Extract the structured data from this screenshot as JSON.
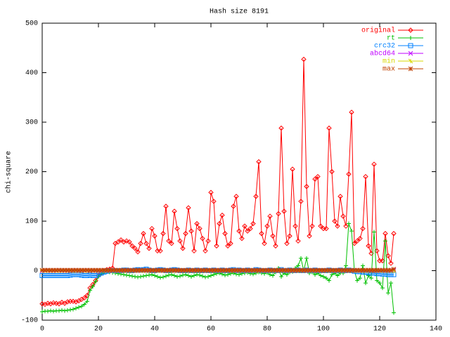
{
  "chart_data": {
    "type": "line",
    "title": "Hash size 8191",
    "ylabel": "chi-square",
    "xlim": [
      0,
      140
    ],
    "xticks": [
      0,
      20,
      40,
      60,
      80,
      100,
      120,
      140
    ],
    "ylim": [
      -100,
      500
    ],
    "yticks": [
      -100,
      0,
      100,
      200,
      300,
      400,
      500
    ],
    "legend": "top-right",
    "x": [
      0,
      1,
      2,
      3,
      4,
      5,
      6,
      7,
      8,
      9,
      10,
      11,
      12,
      13,
      14,
      15,
      16,
      17,
      18,
      19,
      20,
      21,
      22,
      23,
      24,
      25,
      26,
      27,
      28,
      29,
      30,
      31,
      32,
      33,
      34,
      35,
      36,
      37,
      38,
      39,
      40,
      41,
      42,
      43,
      44,
      45,
      46,
      47,
      48,
      49,
      50,
      51,
      52,
      53,
      54,
      55,
      56,
      57,
      58,
      59,
      60,
      61,
      62,
      63,
      64,
      65,
      66,
      67,
      68,
      69,
      70,
      71,
      72,
      73,
      74,
      75,
      76,
      77,
      78,
      79,
      80,
      81,
      82,
      83,
      84,
      85,
      86,
      87,
      88,
      89,
      90,
      91,
      92,
      93,
      94,
      95,
      96,
      97,
      98,
      99,
      100,
      101,
      102,
      103,
      104,
      105,
      106,
      107,
      108,
      109,
      110,
      111,
      112,
      113,
      114,
      115,
      116,
      117,
      118,
      119,
      120,
      121,
      122,
      123,
      124,
      125
    ],
    "series": [
      {
        "name": "original",
        "color": "#ff0000",
        "marker": "diamond",
        "values": [
          -67,
          -68,
          -66,
          -67,
          -65,
          -66,
          -67,
          -64,
          -66,
          -63,
          -62,
          -62,
          -63,
          -61,
          -58,
          -55,
          -50,
          -35,
          -28,
          -20,
          -10,
          -5,
          0,
          2,
          3,
          5,
          55,
          58,
          62,
          58,
          60,
          58,
          50,
          45,
          38,
          55,
          75,
          55,
          45,
          85,
          70,
          40,
          40,
          75,
          130,
          60,
          55,
          120,
          85,
          60,
          45,
          75,
          127,
          80,
          40,
          95,
          85,
          65,
          40,
          60,
          158,
          140,
          50,
          95,
          112,
          75,
          50,
          55,
          130,
          150,
          80,
          65,
          90,
          80,
          85,
          95,
          150,
          220,
          75,
          55,
          90,
          110,
          70,
          50,
          115,
          288,
          120,
          55,
          70,
          205,
          90,
          60,
          140,
          427,
          170,
          70,
          90,
          185,
          190,
          90,
          85,
          85,
          288,
          200,
          100,
          90,
          150,
          110,
          90,
          195,
          320,
          55,
          60,
          65,
          85,
          190,
          50,
          35,
          215,
          40,
          20,
          20,
          75,
          30,
          15,
          75
        ]
      },
      {
        "name": "rt",
        "color": "#00c000",
        "marker": "plus",
        "values": [
          -83,
          -82,
          -82,
          -81,
          -82,
          -81,
          -81,
          -80,
          -81,
          -80,
          -79,
          -78,
          -76,
          -74,
          -72,
          -68,
          -62,
          -40,
          -32,
          -22,
          -12,
          -6,
          -3,
          -2,
          -3,
          -4,
          -5,
          -6,
          -7,
          -8,
          -9,
          -10,
          -11,
          -12,
          -13,
          -12,
          -11,
          -10,
          -9,
          -8,
          -10,
          -12,
          -14,
          -13,
          -11,
          -9,
          -8,
          -10,
          -12,
          -11,
          -9,
          -8,
          -10,
          -12,
          -10,
          -8,
          -9,
          -11,
          -13,
          -12,
          -10,
          -8,
          -6,
          -5,
          -7,
          -9,
          -8,
          -6,
          -5,
          -7,
          -8,
          -6,
          -5,
          -4,
          -6,
          -7,
          -5,
          -3,
          -5,
          -6,
          -4,
          -8,
          -10,
          -3,
          5,
          -12,
          -5,
          -8,
          -3,
          -2,
          5,
          10,
          25,
          0,
          25,
          -5,
          -3,
          -8,
          -5,
          -10,
          -12,
          -15,
          -20,
          -8,
          -5,
          -10,
          -5,
          -5,
          10,
          95,
          80,
          0,
          -20,
          -15,
          10,
          -25,
          -10,
          -15,
          78,
          -20,
          -25,
          -35,
          60,
          -45,
          -25,
          -85
        ]
      },
      {
        "name": "crc32",
        "color": "#0080ff",
        "marker": "square",
        "values": [
          -10,
          -10,
          -10,
          -10,
          -10,
          -10,
          -10,
          -10,
          -10,
          -10,
          -9,
          -8,
          -8,
          -8,
          -9,
          -10,
          -10,
          -9,
          -10,
          -10,
          -8,
          -5,
          -3,
          -1,
          0,
          0,
          0,
          0,
          0,
          1,
          1,
          0,
          0,
          1,
          2,
          1,
          2,
          3,
          1,
          0,
          0,
          1,
          2,
          1,
          0,
          0,
          1,
          2,
          1,
          0,
          0,
          0,
          1,
          0,
          0,
          1,
          0,
          0,
          1,
          0,
          0,
          1,
          0,
          0,
          1,
          0,
          0,
          1,
          2,
          0,
          1,
          0,
          0,
          1,
          0,
          0,
          2,
          1,
          0,
          0,
          0,
          1,
          0,
          0,
          0,
          2,
          0,
          0,
          1,
          0,
          0,
          1,
          0,
          0,
          1,
          0,
          0,
          1,
          0,
          0,
          0,
          0,
          1,
          0,
          0,
          0,
          1,
          0,
          0,
          1,
          0,
          -1,
          -2,
          -2,
          -3,
          -3,
          -4,
          -5,
          -5,
          -6,
          -6,
          -7,
          -7,
          -8,
          -8,
          -8
        ]
      },
      {
        "name": "abcd64",
        "color": "#c000ff",
        "marker": "cross",
        "values": [
          0,
          0,
          1,
          0,
          0,
          0,
          1,
          0,
          0,
          0,
          0,
          0,
          1,
          0,
          0,
          0,
          1,
          0,
          0,
          0,
          0,
          0,
          1,
          0,
          0,
          0,
          1,
          0,
          0,
          0,
          0,
          0,
          1,
          0,
          0,
          0,
          1,
          0,
          0,
          0,
          0,
          0,
          1,
          0,
          0,
          0,
          1,
          0,
          0,
          0,
          0,
          0,
          1,
          0,
          0,
          0,
          1,
          0,
          0,
          0,
          0,
          0,
          1,
          0,
          0,
          0,
          1,
          0,
          0,
          0,
          0,
          0,
          1,
          0,
          0,
          0,
          1,
          0,
          0,
          0,
          0,
          0,
          1,
          0,
          0,
          0,
          1,
          0,
          0,
          0,
          0,
          0,
          1,
          0,
          0,
          0,
          1,
          0,
          0,
          0,
          0,
          0,
          1,
          0,
          0,
          0,
          1,
          0,
          0,
          0,
          0,
          0,
          1,
          0,
          0,
          0,
          1,
          0,
          0,
          0,
          0,
          1,
          0,
          0,
          0,
          1
        ]
      },
      {
        "name": "min",
        "color": "#d8d800",
        "marker": "star",
        "values": [
          0,
          0,
          0,
          0,
          0,
          0,
          0,
          0,
          0,
          0,
          0,
          0,
          0,
          0,
          0,
          0,
          0,
          0,
          0,
          0,
          0,
          0,
          0,
          0,
          0,
          0,
          0,
          0,
          0,
          0,
          0,
          0,
          0,
          0,
          0,
          0,
          0,
          0,
          0,
          0,
          0,
          0,
          0,
          0,
          0,
          0,
          0,
          0,
          0,
          0,
          0,
          0,
          0,
          0,
          0,
          0,
          0,
          0,
          0,
          0,
          0,
          0,
          0,
          0,
          0,
          0,
          0,
          0,
          0,
          0,
          0,
          0,
          0,
          0,
          0,
          0,
          0,
          0,
          0,
          0,
          0,
          0,
          0,
          0,
          0,
          0,
          0,
          0,
          0,
          0,
          0,
          0,
          0,
          0,
          0,
          0,
          0,
          0,
          0,
          0,
          0,
          0,
          0,
          0,
          0,
          0,
          0,
          0,
          0,
          0,
          0,
          0,
          0,
          0,
          0,
          0,
          0,
          0,
          0,
          0,
          0,
          0,
          0,
          0,
          0,
          0
        ]
      },
      {
        "name": "max",
        "color": "#c04000",
        "marker": "asterisk",
        "values": [
          1,
          1,
          1,
          1,
          1,
          1,
          1,
          1,
          1,
          1,
          1,
          1,
          1,
          1,
          1,
          1,
          1,
          1,
          1,
          1,
          1,
          1,
          1,
          1,
          1,
          1,
          1,
          1,
          1,
          1,
          1,
          1,
          1,
          1,
          1,
          1,
          1,
          1,
          1,
          1,
          1,
          1,
          1,
          1,
          1,
          1,
          1,
          1,
          1,
          1,
          1,
          1,
          1,
          1,
          1,
          1,
          1,
          1,
          1,
          1,
          1,
          1,
          1,
          1,
          1,
          1,
          1,
          1,
          1,
          1,
          1,
          1,
          1,
          1,
          1,
          1,
          1,
          1,
          1,
          1,
          1,
          1,
          1,
          1,
          1,
          1,
          1,
          1,
          1,
          1,
          1,
          1,
          1,
          1,
          1,
          1,
          1,
          1,
          1,
          1,
          1,
          1,
          1,
          1,
          1,
          1,
          1,
          1,
          1,
          1,
          1,
          1,
          1,
          1,
          1,
          1,
          1,
          1,
          1,
          1,
          1,
          1,
          1,
          1,
          1,
          3
        ]
      }
    ]
  }
}
